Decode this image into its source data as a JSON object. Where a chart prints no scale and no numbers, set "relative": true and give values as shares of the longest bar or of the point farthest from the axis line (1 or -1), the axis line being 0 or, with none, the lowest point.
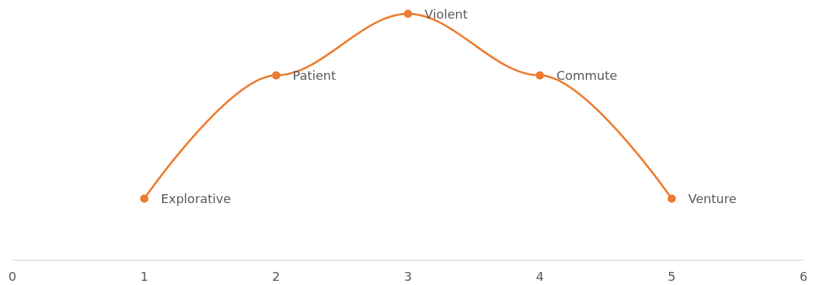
{
  "chart_data": {
    "type": "line",
    "relative": true,
    "x": [
      1,
      2,
      3,
      4,
      5
    ],
    "series": [
      {
        "color": "#ed7d31",
        "values": [
          0.25,
          0.75,
          1,
          0.75,
          0.25
        ]
      }
    ],
    "xlim": [
      0,
      6
    ],
    "xticks": [
      0,
      1,
      2,
      3,
      4,
      5,
      6
    ],
    "marker": "circle",
    "grid": false,
    "annotations": [
      {
        "text": "Explorative",
        "x": 1,
        "y": 0.25
      },
      {
        "text": "Patient",
        "x": 2,
        "y": 0.75
      },
      {
        "text": "Violent",
        "x": 3,
        "y": 1
      },
      {
        "text": "Commute",
        "x": 4,
        "y": 0.75
      },
      {
        "text": "Venture",
        "x": 5,
        "y": 0.25
      }
    ]
  }
}
